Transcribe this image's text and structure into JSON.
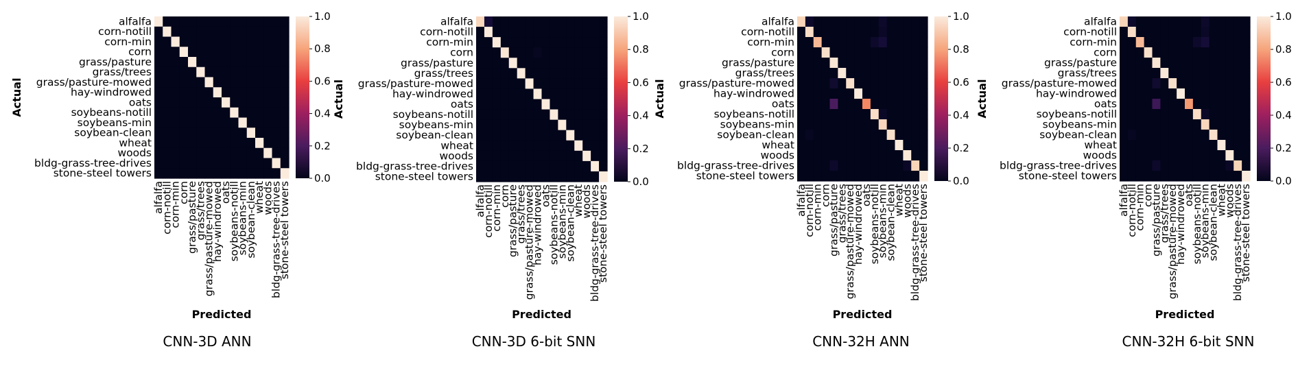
{
  "chart_data": [
    {
      "type": "heatmap",
      "title": "CNN-3D ANN",
      "xlabel": "Predicted",
      "ylabel": "Actual",
      "labels": [
        "alfalfa",
        "corn-notill",
        "corn-min",
        "corn",
        "grass/pasture",
        "grass/trees",
        "grass/pasture-mowed",
        "hay-windrowed",
        "oats",
        "soybeans-notill",
        "soybeans-min",
        "soybean-clean",
        "wheat",
        "woods",
        "bldg-grass-tree-drives",
        "stone-steel towers"
      ],
      "diagonal": [
        1,
        1,
        1,
        1,
        1,
        1,
        1,
        1,
        1,
        1,
        1,
        1,
        1,
        1,
        1,
        1
      ],
      "off_diagonal": [],
      "colorbar": {
        "min": 0,
        "max": 1,
        "ticks": [
          "0.0",
          "0.2",
          "0.4",
          "0.6",
          "0.8",
          "1.0"
        ]
      }
    },
    {
      "type": "heatmap",
      "title": "CNN-3D 6-bit SNN",
      "xlabel": "Predicted",
      "ylabel": "Actual",
      "labels": [
        "alfalfa",
        "corn-notill",
        "corn-min",
        "corn",
        "grass/pasture",
        "grass/trees",
        "grass/pasture-mowed",
        "hay-windrowed",
        "oats",
        "soybeans-notill",
        "soybeans-min",
        "soybean-clean",
        "wheat",
        "woods",
        "bldg-grass-tree-drives",
        "stone-steel towers"
      ],
      "diagonal": [
        0.93,
        1,
        1,
        0.98,
        1,
        1,
        1,
        1,
        1,
        1,
        1,
        1,
        1,
        1,
        1,
        1
      ],
      "off_diagonal": [
        [
          0,
          1,
          0.07
        ],
        [
          3,
          7,
          0.02
        ]
      ],
      "colorbar": {
        "min": 0,
        "max": 1,
        "ticks": [
          "0.0",
          "0.2",
          "0.4",
          "0.6",
          "0.8",
          "1.0"
        ]
      }
    },
    {
      "type": "heatmap",
      "title": "CNN-32H ANN",
      "xlabel": "Predicted",
      "ylabel": "Actual",
      "labels": [
        "alfalfa",
        "corn-notill",
        "corn-min",
        "corn",
        "grass/pasture",
        "grass/trees",
        "grass/pasture-mowed",
        "hay-windrowed",
        "oats",
        "soybeans-notill",
        "soybeans-min",
        "soybean-clean",
        "wheat",
        "woods",
        "bldg-grass-tree-drives",
        "stone-steel towers"
      ],
      "diagonal": [
        0.92,
        0.95,
        0.85,
        0.96,
        0.98,
        0.99,
        0.96,
        1,
        0.75,
        0.95,
        0.93,
        0.96,
        1,
        0.99,
        0.92,
        1
      ],
      "off_diagonal": [
        [
          0,
          1,
          0.04
        ],
        [
          0,
          10,
          0.04
        ],
        [
          1,
          10,
          0.03
        ],
        [
          2,
          9,
          0.04
        ],
        [
          2,
          10,
          0.07
        ],
        [
          6,
          4,
          0.05
        ],
        [
          8,
          4,
          0.2
        ],
        [
          9,
          10,
          0.03
        ],
        [
          11,
          1,
          0.02
        ],
        [
          14,
          4,
          0.04
        ],
        [
          14,
          13,
          0.03
        ]
      ],
      "colorbar": {
        "min": 0,
        "max": 1,
        "ticks": [
          "0.0",
          "0.2",
          "0.4",
          "0.6",
          "0.8",
          "1.0"
        ]
      }
    },
    {
      "type": "heatmap",
      "title": "CNN-32H 6-bit SNN",
      "xlabel": "Predicted",
      "ylabel": "Actual",
      "labels": [
        "alfalfa",
        "corn-notill",
        "corn-min",
        "corn",
        "grass/pasture",
        "grass/trees",
        "grass/pasture-mowed",
        "hay-windrowed",
        "oats",
        "soybeans-notill",
        "soybeans-min",
        "soybean-clean",
        "wheat",
        "woods",
        "bldg-grass-tree-drives",
        "stone-steel towers"
      ],
      "diagonal": [
        0.92,
        0.95,
        0.85,
        0.96,
        0.98,
        0.99,
        0.96,
        1,
        0.78,
        0.95,
        0.93,
        0.96,
        1,
        0.99,
        0.92,
        1
      ],
      "off_diagonal": [
        [
          0,
          1,
          0.04
        ],
        [
          0,
          10,
          0.04
        ],
        [
          1,
          10,
          0.03
        ],
        [
          2,
          9,
          0.04
        ],
        [
          2,
          10,
          0.07
        ],
        [
          6,
          4,
          0.05
        ],
        [
          8,
          4,
          0.17
        ],
        [
          9,
          10,
          0.03
        ],
        [
          11,
          1,
          0.02
        ],
        [
          14,
          4,
          0.04
        ],
        [
          14,
          13,
          0.03
        ]
      ],
      "colorbar": {
        "min": 0,
        "max": 1,
        "ticks": [
          "0.0",
          "0.2",
          "0.4",
          "0.6",
          "0.8",
          "1.0"
        ]
      }
    }
  ]
}
